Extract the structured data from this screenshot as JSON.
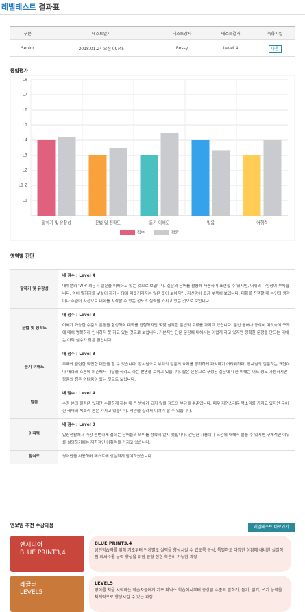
{
  "header": {
    "title_main": "레벨테스트",
    "title_sub": "결과표"
  },
  "summary_table": {
    "headers": [
      "구분",
      "테스트일시",
      "테스트강사",
      "테스트결과",
      "녹화파일"
    ],
    "row": [
      "Senior",
      "2018.01.24 오전 09:45",
      "Rossy",
      "Level 4"
    ],
    "download": "다운"
  },
  "overall": {
    "title": "종합평가",
    "chart": {
      "type": "bar",
      "categories": [
        "말하기 및 유창성",
        "문법 및 정확도",
        "듣기 이해도",
        "발음",
        "어휘력"
      ],
      "series": [
        {
          "name": "점수",
          "colors": [
            "#e0607e",
            "#f9a13a",
            "#4bc0c0",
            "#36a2eb",
            "#ffcd56"
          ],
          "values": [
            5,
            4,
            4,
            5,
            4
          ]
        },
        {
          "name": "평균",
          "color": "#c9cbcf",
          "values": [
            5.2,
            4.5,
            5.5,
            4.3,
            5.0
          ]
        }
      ],
      "ylim": [
        0,
        9
      ],
      "yticks": [
        {
          "value": 1,
          "label": "L1"
        },
        {
          "value": 2,
          "label": "L1-2"
        },
        {
          "value": 3,
          "label": "L2"
        },
        {
          "value": 4,
          "label": "L3"
        },
        {
          "value": 5,
          "label": "L4"
        },
        {
          "value": 6,
          "label": "L5"
        },
        {
          "value": 7,
          "label": "L6"
        },
        {
          "value": 8,
          "label": "L7"
        },
        {
          "value": 9,
          "label": "L8"
        }
      ],
      "grid": true
    }
  },
  "diagnosis": {
    "title": "영역별 진단",
    "rows": [
      {
        "area": "말하기 및 유창성",
        "score": "내 점수 : Level 4",
        "text": "대부분의 'WH' 의문사 질문을 이해하고 있는 것으로 보입니다. 질문의 단어를 활용해 사용하며 표현할 수 있지만, 어휘의 다양성이 부족합니다. 영어 말하기를 낯설어 하거나 많이 머뭇거리지는 않은 듯이 보이지만, 자신감이 조금 부족해 보입니다. 대화를 진행할 때 본인의 생각이나 주관이 사전으로 대화를 시작할 수 있는 정도의 실력을 가지고 있는 것으로 보입니다."
      },
      {
        "area": "문법 및 정확도",
        "score": "내 점수 : Level 3",
        "text": "이해가 가능한 수준의 문장을 형성하며 대화를 진행하지만 몇몇 심각한 문법적 오류를 가지고 있습니다. 문법 용어나 공식이 머릿속에 구조에 대해 명확하게 인식하지 못 하고 있는 것으로 보입니다. 기본적인 단문 문장에 대해서는 어렵게 하고 있지만 정확한 문장을 만드는 데에는 아직 실수가 잦은 편입니다."
      },
      {
        "area": "듣기 이해도",
        "score": "내 점수 : Level 3",
        "text": "주제와 관련한 직접한 대답을 할 수 있습니다. 강사님으로 부터의 질문의 요지를 정확하게 파악하기 어려워하며, 강사님의 질문하는 표현이나 대화의 흐름에 의존해서 대답을 하려고 하는 반면을 보이고 있습니다. 짧은 문장으로 구성된 질문에 대한 이해는 어느 정도 가능하지만 장문의 경우 어려움이 있는 것으로 보입니다."
      },
      {
        "area": "발음",
        "score": "내 점수 : Level 4",
        "text": "수정 분의 질점은 있지만 수월하게 하는 데 큰 방해가 되지 않을 정도의 부담을 수준입니다. 매우 자연스러운 목소리를 가지고 있지만 문이한 레퍼의 목소리 톤은 가지고 있습니다. 억양을 살려서 이야기 할 수 있습니다."
      },
      {
        "area": "어휘력",
        "score": "내 점수 : Level 3",
        "text": "일상생활에서 가장 빈번하게 접하는 단어들의 의미를 정확히 알지 못합니다. 간단한 사용이나 느낌에 대해서 물을 수 있지만 구체적인 이유를 설명하기에는 제한적인 어휘력을 가지고 있습니다."
      },
      {
        "area": "참여도",
        "text": "영어만을 사용하며 테스트에 성실하게 참여하였습니다."
      }
    ]
  },
  "courses": {
    "title": "엔보임 추천 수강과정",
    "button": "레벨테스트 바로가기",
    "items": [
      {
        "badge": [
          "앤시니어",
          "BLUE PRINT3,4"
        ],
        "name": "BLUE PRINT3,4",
        "desc": "성인학습자를 위해 기초부터 단계별로 실력을 향상시킬 수 있도록 구성, 특별하고 다양한 상황에 대비한 실질적인 의사소통 능력 향상을 위한 균형 잡힌 학습이 가능한 과정"
      },
      {
        "badge": [
          "레귤러",
          "LEVEL5"
        ],
        "name": "LEVEL5",
        "desc": "영어를 처음 시작하는 학습자들에게 기초 파닉스 학습에서부터 중상급 수준의 말하기, 듣기, 읽기, 쓰기 능력을 체계적으로 향상시킬 수 있는 과정"
      }
    ]
  }
}
